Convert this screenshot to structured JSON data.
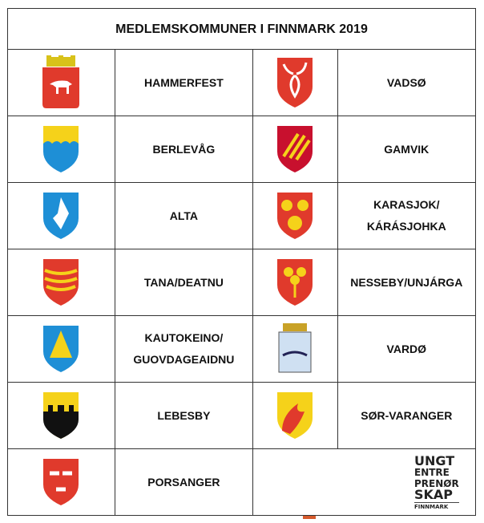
{
  "title": "MEDLEMSKOMMUNER I FINNMARK 2019",
  "rows": [
    [
      {
        "name": "HAMMERFEST",
        "icon": "hammerfest-coat-of-arms-icon"
      },
      {
        "name": "VADSØ",
        "icon": "vadso-coat-of-arms-icon"
      }
    ],
    [
      {
        "name": "BERLEVÅG",
        "icon": "berlevag-coat-of-arms-icon"
      },
      {
        "name": "GAMVIK",
        "icon": "gamvik-coat-of-arms-icon"
      }
    ],
    [
      {
        "name": "ALTA",
        "icon": "alta-coat-of-arms-icon"
      },
      {
        "name": "KARASJOK/ KÁRÁSJOHKA",
        "icon": "karasjok-coat-of-arms-icon"
      }
    ],
    [
      {
        "name": "TANA/DEATNU",
        "icon": "tana-coat-of-arms-icon"
      },
      {
        "name": "NESSEBY/UNJÁRGA",
        "icon": "nesseby-coat-of-arms-icon"
      }
    ],
    [
      {
        "name": "KAUTOKEINO/ GUOVDAGEAIDNU",
        "icon": "kautokeino-coat-of-arms-icon"
      },
      {
        "name": "VARDØ",
        "icon": "vardo-coat-of-arms-icon"
      }
    ],
    [
      {
        "name": "LEBESBY",
        "icon": "lebesby-coat-of-arms-icon"
      },
      {
        "name": "SØR-VARANGER",
        "icon": "sor-varanger-coat-of-arms-icon"
      }
    ],
    [
      {
        "name": "PORSANGER",
        "icon": "porsanger-coat-of-arms-icon"
      }
    ]
  ],
  "logo": {
    "lines": [
      "UNGT",
      "ENTRE",
      "PRENØR",
      "SKAP"
    ],
    "sub": "FINNMARK"
  },
  "colors": {
    "red": "#e03a2c",
    "yellow": "#f5d21a",
    "blue": "#1e8fd6",
    "black": "#111111"
  }
}
